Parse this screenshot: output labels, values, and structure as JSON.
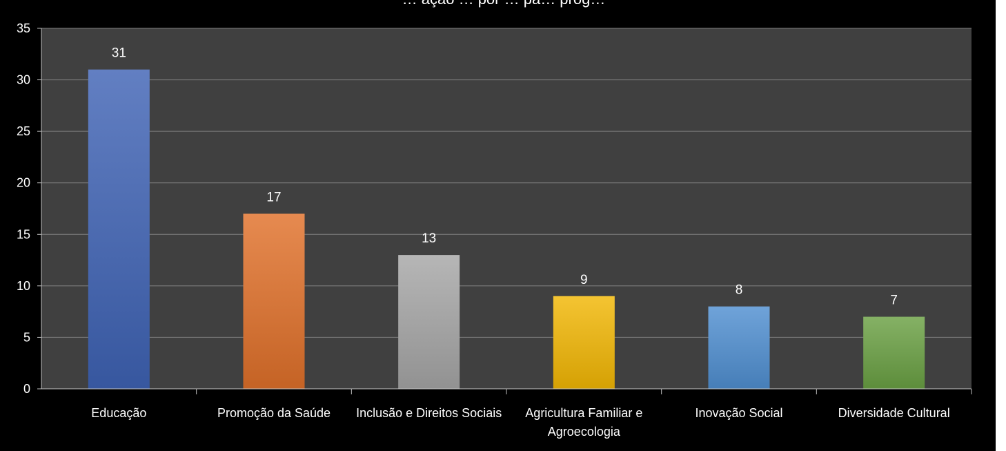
{
  "chart_data": {
    "type": "bar",
    "title": "… ação … por … pa… prog…",
    "categories": [
      "Educação",
      "Promoção da Saúde",
      "Inclusão e Direitos Sociais",
      "Agricultura Familiar e Agroecologia",
      "Inovação Social",
      "Diversidade Cultural"
    ],
    "category_label_lines": [
      [
        "Educação"
      ],
      [
        "Promoção da Saúde"
      ],
      [
        "Inclusão e Direitos Sociais"
      ],
      [
        "Agricultura Familiar e",
        "Agroecologia"
      ],
      [
        "Inovação Social"
      ],
      [
        "Diversidade Cultural"
      ]
    ],
    "values": [
      31,
      17,
      13,
      9,
      8,
      7
    ],
    "colors": [
      "#3f63b5",
      "#e0702a",
      "#a6a6a6",
      "#f2b705",
      "#4f8fd1",
      "#6aa043"
    ],
    "ylim": [
      0,
      35
    ],
    "yticks": [
      0,
      5,
      10,
      15,
      20,
      25,
      30,
      35
    ],
    "grid": true,
    "data_labels": true,
    "legend": "none",
    "plot_background": "#404040",
    "page_background": "#000000"
  }
}
